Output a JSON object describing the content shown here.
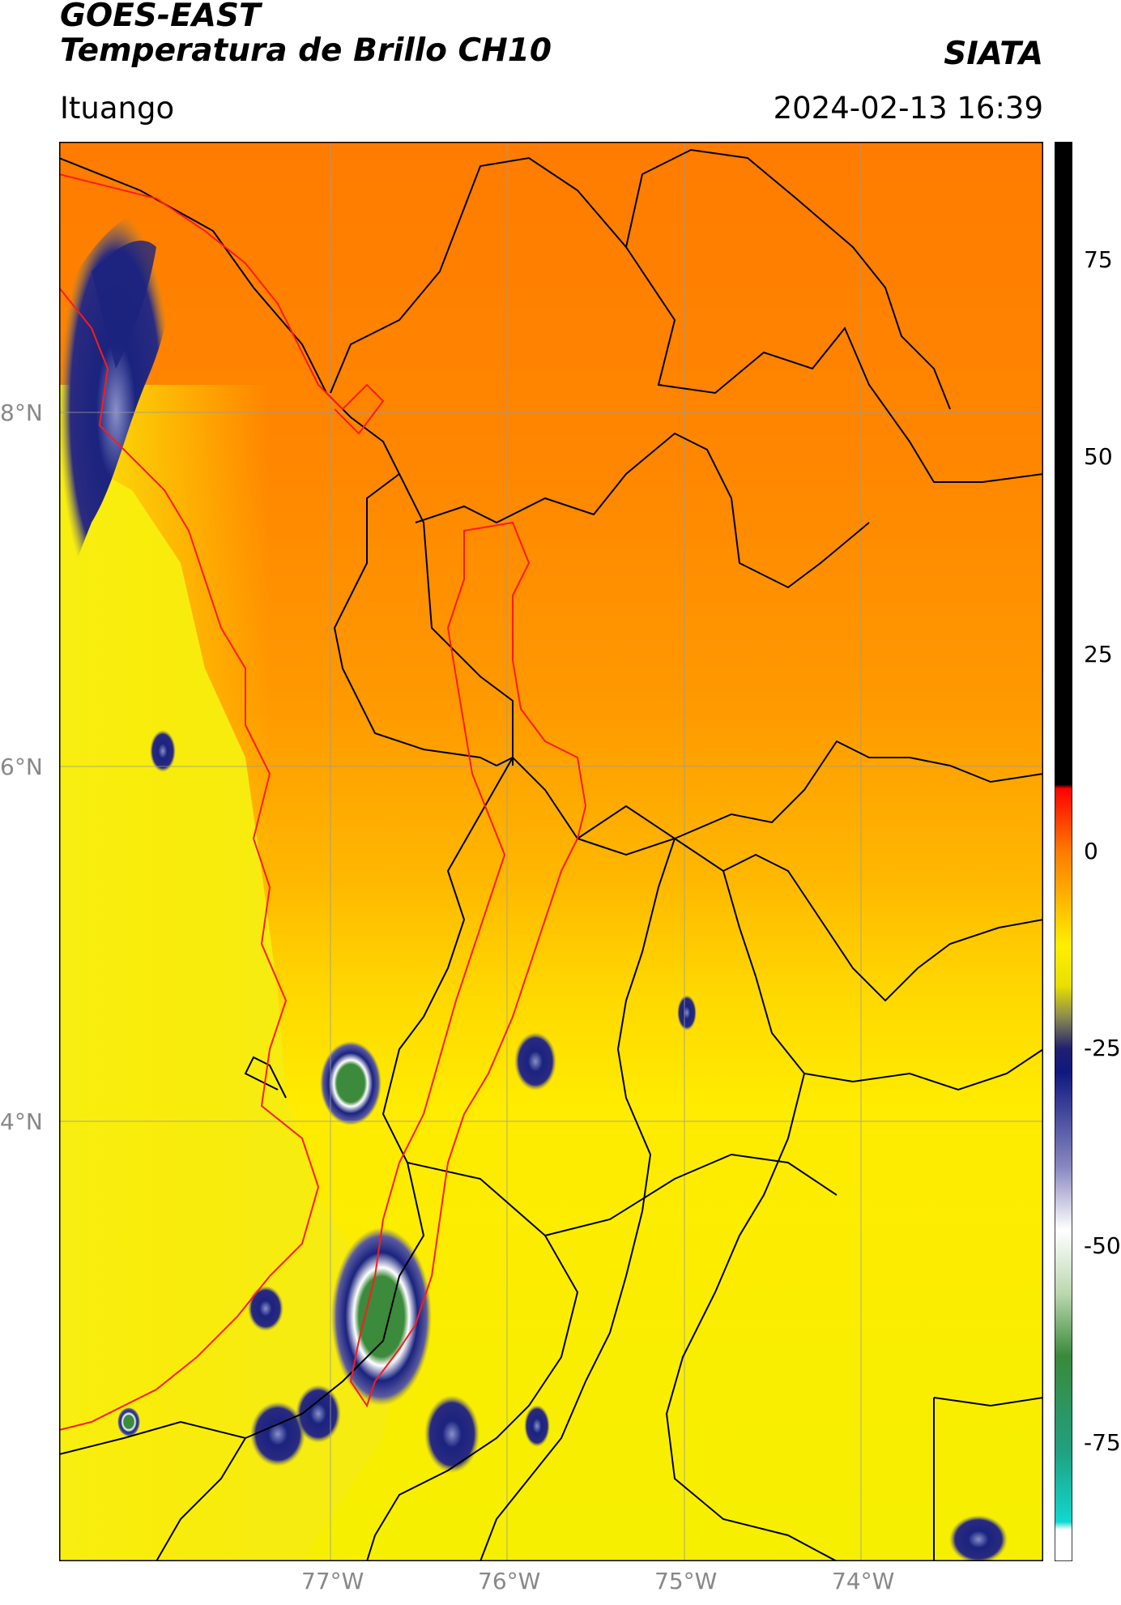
{
  "header": {
    "satellite": "GOES-EAST",
    "product": "Temperatura de Brillo CH10",
    "organization": "SIATA",
    "location": "Ituango",
    "datetime": "2024-02-13 16:39"
  },
  "map": {
    "lat_labels": [
      {
        "label": "8°N",
        "value": 8
      },
      {
        "label": "6°N",
        "value": 6
      },
      {
        "label": "4°N",
        "value": 4
      }
    ],
    "lon_labels": [
      {
        "label": "77°W",
        "value": -77
      },
      {
        "label": "76°W",
        "value": -76
      },
      {
        "label": "75°W",
        "value": -75
      },
      {
        "label": "74°W",
        "value": -74
      }
    ],
    "colors": {
      "frame": "#000000",
      "grid": "#9a9a9a",
      "boundaries": "#000000",
      "basin_outline": "#ff1a1a",
      "warm_orange": "#ff7a00",
      "mid_orange": "#ffa000",
      "yellow": "#ffef00",
      "cloud_blue": "#1a237e",
      "cloud_green": "#3c8a3c"
    }
  },
  "colorbar": {
    "min": -90,
    "max": 90,
    "ticks": [
      {
        "label": "75",
        "value": 75
      },
      {
        "label": "50",
        "value": 50
      },
      {
        "label": "25",
        "value": 25
      },
      {
        "label": "0",
        "value": 0
      },
      {
        "label": "-25",
        "value": -25
      },
      {
        "label": "-50",
        "value": -50
      },
      {
        "label": "-75",
        "value": -75
      }
    ],
    "stops": [
      {
        "value": 90,
        "color": "#000000"
      },
      {
        "value": 8.5,
        "color": "#000000"
      },
      {
        "value": 8,
        "color": "#ff0000"
      },
      {
        "value": 0,
        "color": "#ff7a00"
      },
      {
        "value": -12,
        "color": "#ffef00"
      },
      {
        "value": -17,
        "color": "#e8e000"
      },
      {
        "value": -21,
        "color": "#8a8a50"
      },
      {
        "value": -25,
        "color": "#202070"
      },
      {
        "value": -28,
        "color": "#101880"
      },
      {
        "value": -40,
        "color": "#8888c0"
      },
      {
        "value": -48,
        "color": "#ffffff"
      },
      {
        "value": -56,
        "color": "#bcd8b0"
      },
      {
        "value": -64,
        "color": "#3a8a3a"
      },
      {
        "value": -76,
        "color": "#20a080"
      },
      {
        "value": -85,
        "color": "#10d8d0"
      },
      {
        "value": -86,
        "color": "#ffffff"
      },
      {
        "value": -90,
        "color": "#ffffff"
      }
    ]
  }
}
